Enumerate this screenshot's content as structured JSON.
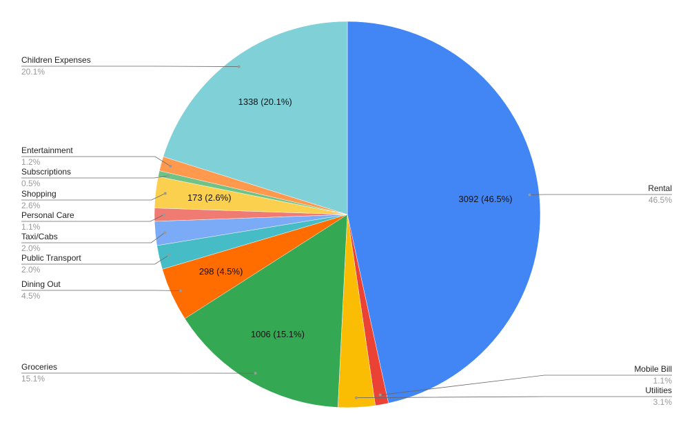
{
  "chart_data": {
    "type": "pie",
    "categories": [
      "Rental",
      "Mobile Bill",
      "Utilities",
      "Groceries",
      "Dining Out",
      "Public Transport",
      "Taxi/Cabs",
      "Personal Care",
      "Shopping",
      "Subscriptions",
      "Entertainment",
      "Children Expenses"
    ],
    "values": [
      3092,
      73,
      206,
      1006,
      298,
      133,
      133,
      73,
      173,
      33,
      80,
      1338
    ],
    "value_labels": [
      "3092 (46.5%)",
      null,
      null,
      "1006 (15.1%)",
      "298 (4.5%)",
      null,
      null,
      null,
      "173 (2.6%)",
      null,
      null,
      "1338 (20.1%)"
    ],
    "percent_labels": [
      "46.5%",
      "1.1%",
      "3.1%",
      "15.1%",
      "4.5%",
      "2.0%",
      "2.0%",
      "1.1%",
      "2.6%",
      "0.5%",
      "1.2%",
      "20.1%"
    ],
    "colors": [
      "#4285f4",
      "#ea4335",
      "#fbbc04",
      "#34a853",
      "#ff6d01",
      "#46bdc6",
      "#7baaf7",
      "#f07b72",
      "#fcd04f",
      "#71c287",
      "#ff994d",
      "#80d0d8"
    ]
  }
}
